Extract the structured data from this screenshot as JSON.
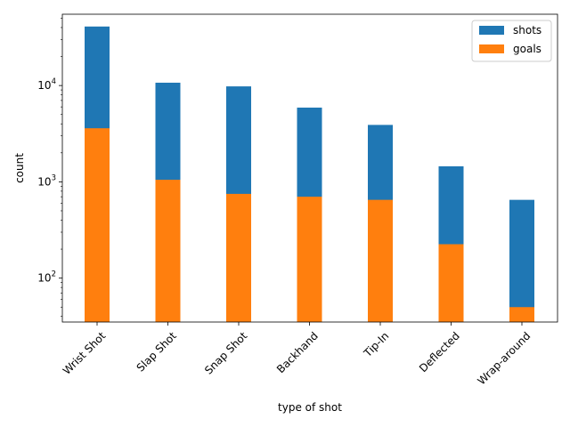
{
  "chart_data": {
    "type": "bar",
    "xlabel": "type of shot",
    "ylabel": "count",
    "yscale": "log",
    "ylim": [
      35,
      55000
    ],
    "yticks": [
      {
        "value": 100,
        "base": "10",
        "exp": "2"
      },
      {
        "value": 1000,
        "base": "10",
        "exp": "3"
      },
      {
        "value": 10000,
        "base": "10",
        "exp": "4"
      }
    ],
    "categories": [
      "Wrist Shot",
      "Slap Shot",
      "Snap Shot",
      "Backhand",
      "Tip-In",
      "Deflected",
      "Wrap-around"
    ],
    "series": [
      {
        "name": "shots",
        "color": "#1f77b4",
        "values": [
          41000,
          10700,
          9800,
          5900,
          3900,
          1450,
          650
        ]
      },
      {
        "name": "goals",
        "color": "#ff7f0e",
        "values": [
          3600,
          1050,
          750,
          700,
          650,
          225,
          50
        ]
      }
    ],
    "legend": {
      "position": "top-right"
    },
    "grid": false
  }
}
